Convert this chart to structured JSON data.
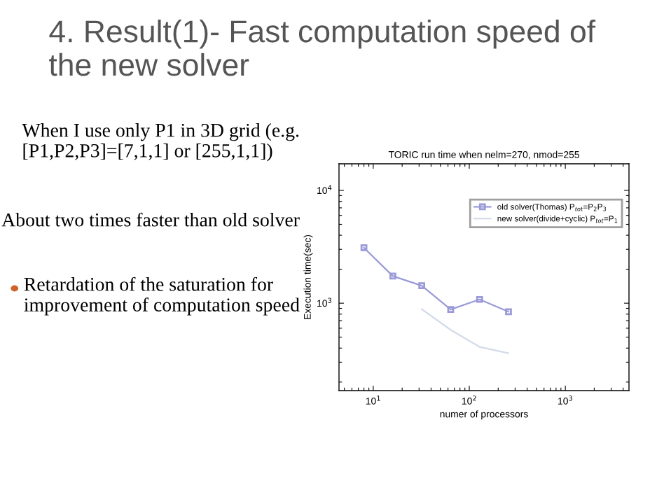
{
  "chart_data": {
    "type": "line",
    "title": "4. Result(1)- Fast computation speed of the new solver",
    "subtitle": "TORIC run time when nelm=270, nmod=255",
    "xlabel": "numer of processors",
    "ylabel": "Execution time(sec)",
    "annotations": [
      "When I use only P1 in 3D grid (e.g. [P1,P2,P3]=[7,1,1] or [255,1,1])",
      "About two times faster than old solver",
      "Retardation of the saturation for improvement of computation speed"
    ],
    "series": [
      {
        "name": "old solver(Thomas) P$_{tot}$=P$_{2}$P$_{3}$",
        "color": "#9a9ad8",
        "marker": "square",
        "x": [
          8,
          16,
          32,
          64,
          128,
          256
        ],
        "values": [
          3100,
          1740,
          1430,
          880,
          1080,
          840
        ]
      },
      {
        "name": "new solver(divide+cyclic) P$_{tot}$=P$_{1}$",
        "color": "#d4dbe8",
        "marker": "none",
        "x": [
          32,
          64,
          128,
          256
        ],
        "values": [
          885,
          580,
          410,
          360
        ]
      }
    ],
    "log": "xy",
    "xlim": [
      4.4,
      4600
    ],
    "ylim": [
      168,
      17200
    ],
    "xticks": [
      {
        "value": 10,
        "label": "10$^{1}$"
      },
      {
        "value": 100,
        "label": "10$^{2}$"
      },
      {
        "value": 1000,
        "label": "10$^{3}$"
      }
    ],
    "yticks": [
      {
        "value": 1000,
        "label": "10$^{3}$"
      },
      {
        "value": 10000,
        "label": "10$^{4}$"
      }
    ],
    "legend": "top right",
    "line_style": "solid",
    "grid": false
  }
}
